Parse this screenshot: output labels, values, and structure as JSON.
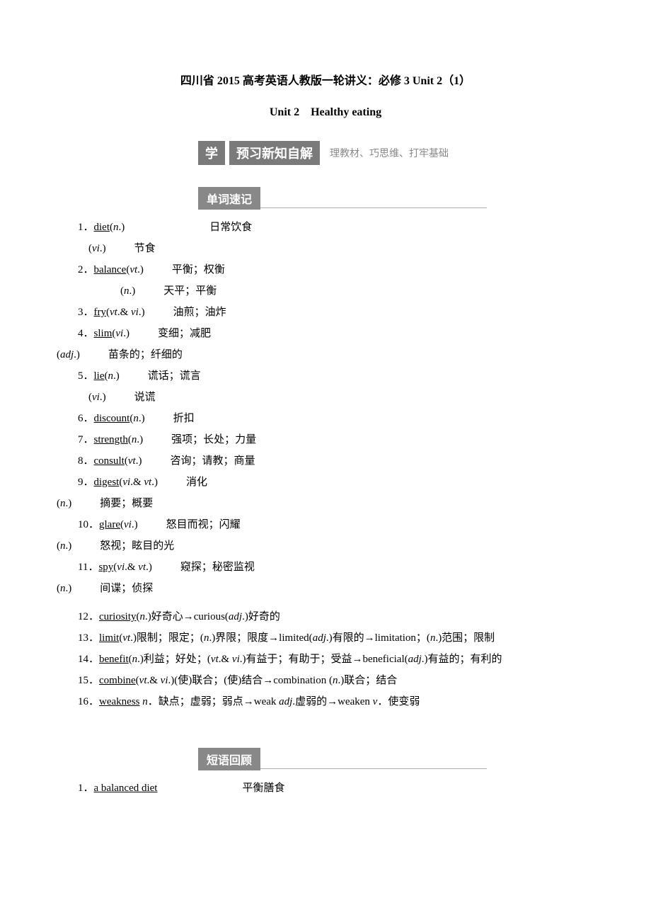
{
  "header": {
    "title": "四川省 2015 高考英语人教版一轮讲义：必修 3 Unit 2（1）",
    "subtitle": "Unit 2　Healthy eating"
  },
  "banner1": {
    "left": "学",
    "mid": "预习新知自解",
    "right": "理教材、巧思维、打牢基础"
  },
  "tab1": {
    "label": "单词速记"
  },
  "vocab": [
    {
      "n": "1．",
      "word": "diet",
      "pos": "(n.)",
      "gap": "lg",
      "def": "日常饮食",
      "subs": [
        {
          "pos": "(vi.)",
          "def": "节食"
        }
      ]
    },
    {
      "n": "2．",
      "word": "balance",
      "pos": "(vt.)",
      "gap": "md",
      "def": "平衡；权衡",
      "subs": [
        {
          "posIndent": true,
          "pos": "(n.)",
          "def": "天平；平衡"
        }
      ]
    },
    {
      "n": "3．",
      "word": "fry",
      "pos": "(vt.& vi.)",
      "gap": "md",
      "def": "油煎；油炸"
    },
    {
      "n": "4．",
      "word": "slim",
      "pos": "(vi.)",
      "gap": "md",
      "def": "变细；减肥",
      "subs": [
        {
          "noindent": true,
          "pos": "(adj.)",
          "def": "苗条的；纤细的"
        }
      ]
    },
    {
      "n": "5．",
      "word": "lie",
      "pos": "(n.)",
      "gap": "md",
      "def": "谎话；谎言",
      "subs": [
        {
          "pos": "(vi.)",
          "def": "说谎"
        }
      ]
    },
    {
      "n": "6．",
      "word": "discount",
      "pos": "(n.)",
      "gap": "md",
      "def": "折扣"
    },
    {
      "n": "7．",
      "word": "strength",
      "pos": "(n.)",
      "gap": "md",
      "def": "强项；长处；力量"
    },
    {
      "n": "8．",
      "word": "consult",
      "pos": "(vt.)",
      "gap": "md",
      "def": "咨询；请教；商量"
    },
    {
      "n": "9．",
      "word": "digest",
      "pos": "(vi.& vt.)",
      "gap": "md",
      "def": "消化",
      "subs": [
        {
          "noindent": true,
          "pos": "(n.)",
          "def": "摘要；概要"
        }
      ]
    },
    {
      "n": "10．",
      "word": "glare",
      "pos": "(vi.)",
      "gap": "md",
      "def": "怒目而视；闪耀",
      "subs": [
        {
          "noindent": true,
          "pos": "(n.)",
          "def": "怒视；眩目的光"
        }
      ]
    },
    {
      "n": "11．",
      "word": "spy",
      "pos": "(vi.& vt.)",
      "gap": "md",
      "def": "窥探；秘密监视",
      "subs": [
        {
          "noindent": true,
          "pos": "(n.)",
          "def": "间谍；侦探"
        }
      ]
    }
  ],
  "vocab_chain": [
    {
      "n": "12．",
      "text_html": "<span class='u'>curiosity</span>(<span class='it'>n</span>.)好奇心→curious(<span class='it'>adj</span>.)好奇的"
    },
    {
      "n": "13．",
      "text_html": "<span class='u'>limit</span>(<span class='it'>vt</span>.)限制；限定；(<span class='it'>n</span>.)界限；限度→limited(<span class='it'>adj</span>.)有限的→limitation；(<span class='it'>n</span>.)范围；限制",
      "wrap": true
    },
    {
      "n": "14．",
      "text_html": "<span class='u'>benefit</span>(<span class='it'>n</span>.)利益；好处；(<span class='it'>vt</span>.& <span class='it'>vi</span>.)有益于；有助于；受益→beneficial(<span class='it'>adj</span>.)有益的；有利的",
      "wrap": true
    },
    {
      "n": "15．",
      "text_html": "<span class='u'>combine</span>(<span class='it'>vt</span>.& <span class='it'>vi</span>.)(使)联合；(使)结合→combination (<span class='it'>n</span>.)联合；结合"
    },
    {
      "n": "16．",
      "text_html": "<span class='u'>weakness</span> <span class='it'>n</span>．缺点；虚弱；弱点→weak <span class='it'>adj</span>.虚弱的→weaken <span class='it'>v</span>．使变弱"
    }
  ],
  "tab2": {
    "label": "短语回顾"
  },
  "phrases": [
    {
      "n": "1．",
      "phrase": "a_balanced_diet",
      "def": "平衡膳食"
    }
  ]
}
